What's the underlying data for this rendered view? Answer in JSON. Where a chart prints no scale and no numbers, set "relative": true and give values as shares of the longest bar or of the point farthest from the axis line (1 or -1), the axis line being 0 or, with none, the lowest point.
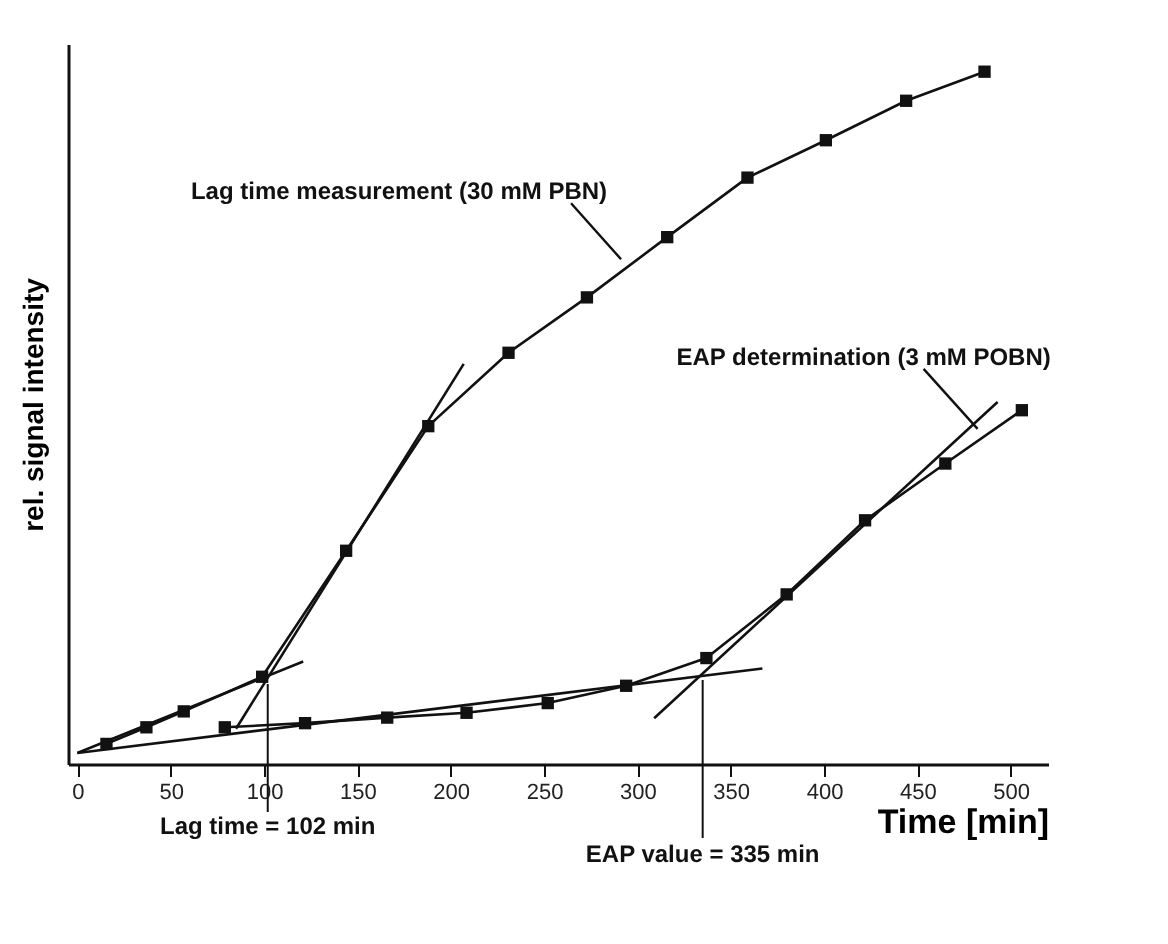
{
  "chart_data": {
    "type": "line",
    "relative": true,
    "xlabel": "Time [min]",
    "ylabel": "rel. signal intensity",
    "xlim": [
      -5,
      520
    ],
    "xticks": [
      0,
      50,
      100,
      150,
      200,
      250,
      300,
      350,
      400,
      450,
      500
    ],
    "series": [
      {
        "name": "Lag time measurement (30 mM PBN)",
        "color": "#111111",
        "x": [
          15.6,
          37,
          57,
          99,
          144,
          188,
          231,
          273,
          316,
          359,
          401,
          444,
          486
        ],
        "values": [
          0.029,
          0.053,
          0.076,
          0.126,
          0.308,
          0.488,
          0.594,
          0.674,
          0.761,
          0.847,
          0.901,
          0.958,
          1.0
        ]
      },
      {
        "name": "EAP determination (3 mM POBN)",
        "color": "#111111",
        "x": [
          79,
          122,
          166,
          208.5,
          252,
          294,
          337,
          380,
          422,
          465,
          506
        ],
        "values": [
          0.053,
          0.059,
          0.067,
          0.074,
          0.088,
          0.113,
          0.153,
          0.245,
          0.352,
          0.434,
          0.511
        ]
      },
      {
        "type": "line",
        "marker": "none",
        "color": "#111111",
        "x": [
          0,
          121
        ],
        "values": [
          0.016,
          0.148
        ]
      },
      {
        "type": "line",
        "marker": "none",
        "color": "#111111",
        "x": [
          85,
          207
        ],
        "values": [
          0.051,
          0.578
        ]
      },
      {
        "type": "line",
        "marker": "none",
        "color": "#111111",
        "x": [
          0,
          367
        ],
        "values": [
          0.016,
          0.138
        ]
      },
      {
        "type": "line",
        "marker": "none",
        "color": "#111111",
        "x": [
          309,
          493
        ],
        "values": [
          0.066,
          0.523
        ]
      }
    ],
    "marker": "square",
    "grid": false,
    "ref_lines": [
      {
        "axis": "x",
        "value": 102,
        "label": "Lag time = 102 min"
      },
      {
        "axis": "x",
        "value": 335,
        "label": "EAP value = 335 min"
      }
    ]
  }
}
